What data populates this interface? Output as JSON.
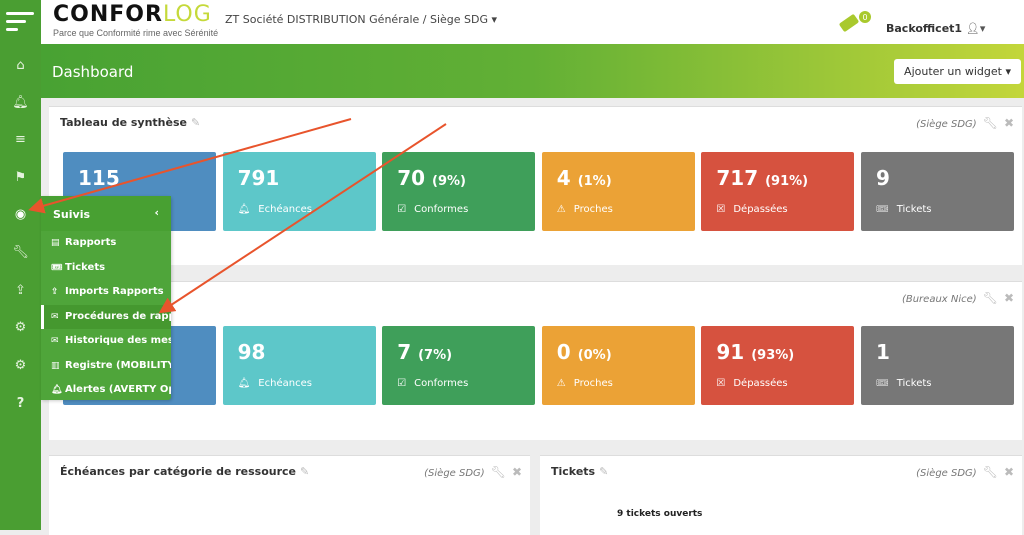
{
  "header": {
    "logo_main": "CONFOR",
    "logo_accent": "LOG",
    "tagline": "Parce que Conformité rime avec Sérénité",
    "company": "ZT Société DISTRIBUTION Générale / Siège SDG ▾",
    "ticket_count": "0",
    "user": "Backofficet1",
    "lang": "🇫🇷 ▾"
  },
  "banner": {
    "title": "Dashboard",
    "add_widget": "Ajouter un widget ▾"
  },
  "colors": {
    "sidebar": "#4a9e32",
    "blue": "#4f8dc0",
    "teal": "#5dc7c9",
    "green": "#3f9f5a",
    "orange": "#eba236",
    "red": "#d6523f",
    "gray": "#777777",
    "arrow": "#e8542c"
  },
  "panels": [
    {
      "title": "Tableau de synthèse",
      "scope": "(Siège SDG)",
      "tiles": [
        {
          "value": "115",
          "pct": "",
          "label": "",
          "icon": "none"
        },
        {
          "value": "791",
          "pct": "",
          "label": "Echéances",
          "icon": "bell"
        },
        {
          "value": "70",
          "pct": "(9%)",
          "label": "Conformes",
          "icon": "calendar-check"
        },
        {
          "value": "4",
          "pct": "(1%)",
          "label": "Proches",
          "icon": "warning"
        },
        {
          "value": "717",
          "pct": "(91%)",
          "label": "Dépassées",
          "icon": "calendar-x"
        },
        {
          "value": "9",
          "pct": "",
          "label": "Tickets",
          "icon": "ticket"
        }
      ]
    },
    {
      "title": "",
      "scope": "(Bureaux Nice)",
      "tiles": [
        {
          "value": "",
          "pct": "",
          "label": "",
          "icon": "none"
        },
        {
          "value": "98",
          "pct": "",
          "label": "Echéances",
          "icon": "bell"
        },
        {
          "value": "7",
          "pct": "(7%)",
          "label": "Conformes",
          "icon": "calendar-check"
        },
        {
          "value": "0",
          "pct": "(0%)",
          "label": "Proches",
          "icon": "warning"
        },
        {
          "value": "91",
          "pct": "(93%)",
          "label": "Dépassées",
          "icon": "calendar-x"
        },
        {
          "value": "1",
          "pct": "",
          "label": "Tickets",
          "icon": "ticket"
        }
      ]
    },
    {
      "title": "Échéances par catégorie de ressource",
      "scope": "(Siège SDG)"
    },
    {
      "title": "Tickets",
      "scope": "(Siège SDG)",
      "subtitle": "9 tickets ouverts"
    }
  ],
  "menu": {
    "title": "Suivis",
    "items": [
      {
        "label": "Rapports",
        "icon": "file"
      },
      {
        "label": "Tickets",
        "icon": "ticket"
      },
      {
        "label": "Imports Rapports",
        "icon": "upload"
      },
      {
        "label": "Procédures de rappel",
        "icon": "envelope",
        "active": true
      },
      {
        "label": "Historique des mess...",
        "icon": "envelope-open"
      },
      {
        "label": "Registre (MOBILITY ...",
        "icon": "book"
      },
      {
        "label": "Alertes (AVERTY Opt...",
        "icon": "bell"
      }
    ]
  },
  "sidebar": {
    "help": "?"
  }
}
